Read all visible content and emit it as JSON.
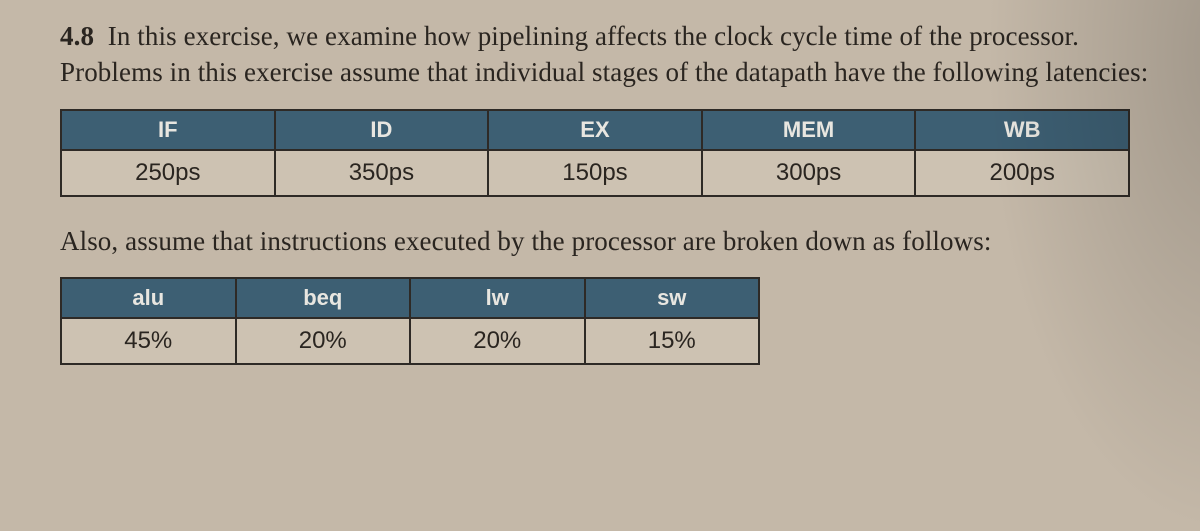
{
  "exercise_number": "4.8",
  "paragraph1": "In this exercise, we examine how pipelining affects the clock cycle time of the processor. Problems in this exercise assume that individual stages of the datapath have the following latencies:",
  "table1": {
    "headers": [
      "IF",
      "ID",
      "EX",
      "MEM",
      "WB"
    ],
    "values": [
      "250ps",
      "350ps",
      "150ps",
      "300ps",
      "200ps"
    ],
    "header_bg": "#3d5f73",
    "header_fg": "#e8e6e0",
    "cell_bg": "#cdc2b2",
    "border_color": "#2e2a26"
  },
  "paragraph2": "Also, assume that instructions executed by the processor are broken down as follows:",
  "table2": {
    "headers": [
      "alu",
      "beq",
      "lw",
      "sw"
    ],
    "values": [
      "45%",
      "20%",
      "20%",
      "15%"
    ],
    "header_bg": "#3d5f73",
    "header_fg": "#e8e6e0",
    "cell_bg": "#cdc2b2",
    "border_color": "#2e2a26"
  },
  "page_bg": "#c4b8a8"
}
